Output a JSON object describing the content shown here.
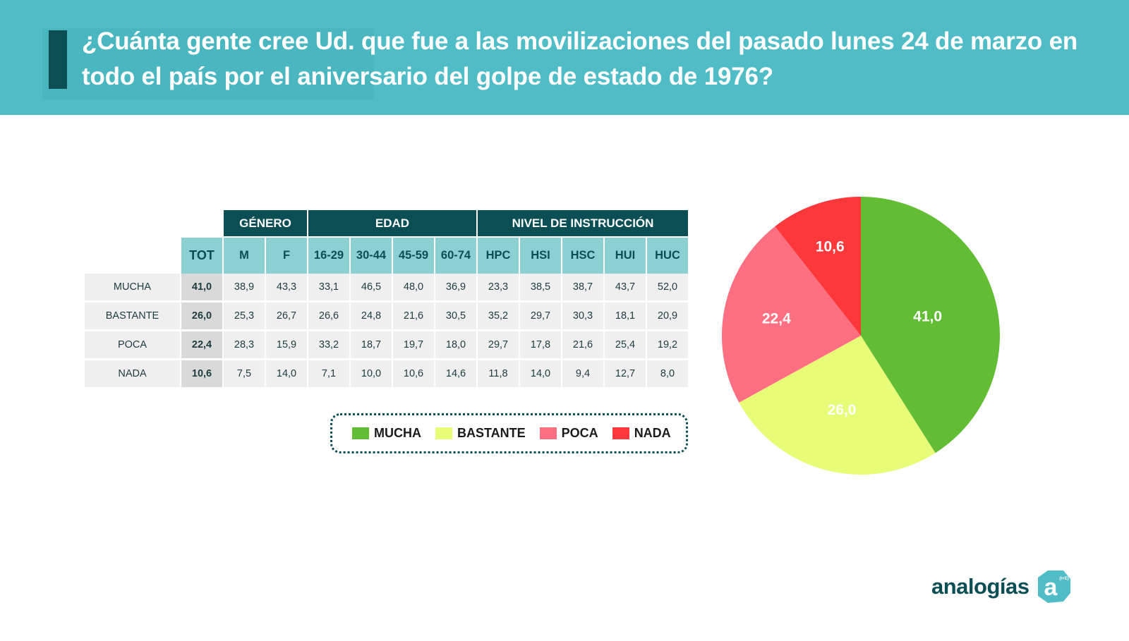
{
  "header": {
    "title": "¿Cuánta gente cree Ud. que fue a las movilizaciones del pasado lunes 24 de marzo en todo el país por el aniversario del golpe de estado de 1976?"
  },
  "table": {
    "groups": [
      {
        "label": "GÉNERO",
        "span": 2
      },
      {
        "label": "EDAD",
        "span": 4
      },
      {
        "label": "NIVEL DE INSTRUCCIÓN",
        "span": 5
      }
    ],
    "columns": [
      "TOT",
      "M",
      "F",
      "16-29",
      "30-44",
      "45-59",
      "60-74",
      "HPC",
      "HSI",
      "HSC",
      "HUI",
      "HUC"
    ],
    "rows": [
      {
        "label": "MUCHA",
        "values": [
          "41,0",
          "38,9",
          "43,3",
          "33,1",
          "46,5",
          "48,0",
          "36,9",
          "23,3",
          "38,5",
          "38,7",
          "43,7",
          "52,0"
        ]
      },
      {
        "label": "BASTANTE",
        "values": [
          "26,0",
          "25,3",
          "26,7",
          "26,6",
          "24,8",
          "21,6",
          "30,5",
          "35,2",
          "29,7",
          "30,3",
          "18,1",
          "20,9"
        ]
      },
      {
        "label": "POCA",
        "values": [
          "22,4",
          "28,3",
          "15,9",
          "33,2",
          "18,7",
          "19,7",
          "18,0",
          "29,7",
          "17,8",
          "21,6",
          "25,4",
          "19,2"
        ]
      },
      {
        "label": "NADA",
        "values": [
          "10,6",
          "7,5",
          "14,0",
          "7,1",
          "10,0",
          "10,6",
          "14,6",
          "11,8",
          "14,0",
          "9,4",
          "12,7",
          "8,0"
        ]
      }
    ]
  },
  "legend": [
    {
      "label": "MUCHA",
      "color": "#62bd35"
    },
    {
      "label": "BASTANTE",
      "color": "#e8fc78"
    },
    {
      "label": "POCA",
      "color": "#fe6f81"
    },
    {
      "label": "NADA",
      "color": "#fd383b"
    }
  ],
  "chart_data": {
    "type": "pie",
    "title": "¿Cuánta gente cree Ud. que fue a las movilizaciones del pasado lunes 24 de marzo en todo el país por el aniversario del golpe de estado de 1976?",
    "categories": [
      "MUCHA",
      "BASTANTE",
      "POCA",
      "NADA"
    ],
    "values": [
      41.0,
      26.0,
      22.4,
      10.6
    ],
    "labels": [
      "41,0",
      "26,0",
      "22,4",
      "10,6"
    ],
    "colors": [
      "#62bd35",
      "#e8fc78",
      "#fe6f81",
      "#fd383b"
    ],
    "start": "12 o'clock",
    "direction": "clockwise",
    "legend_position": "bottom-left of chart, below table"
  },
  "logo": {
    "text": "analogías",
    "mark_letter": "a",
    "mark_superscript": "(I+E)"
  }
}
